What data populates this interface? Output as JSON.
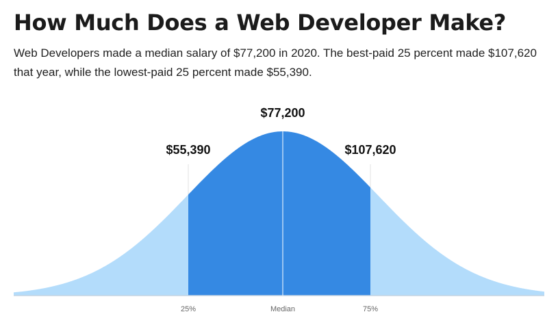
{
  "header": {
    "title": "How Much Does a Web Developer Make?",
    "subtitle": "Web Developers made a median salary of $77,200 in 2020. The best-paid 25 percent made $107,620 that year, while the lowest-paid 25 percent made $55,390."
  },
  "chart_data": {
    "type": "area",
    "shape": "bell-curve",
    "title": "",
    "xlabel": "",
    "ylabel": "",
    "grid": false,
    "markers": [
      {
        "tick_label": "25%",
        "value": 55390,
        "value_label": "$55,390"
      },
      {
        "tick_label": "Median",
        "value": 77200,
        "value_label": "$77,200"
      },
      {
        "tick_label": "75%",
        "value": 107620,
        "value_label": "$107,620"
      }
    ],
    "colors": {
      "middle_range": "#3589e3",
      "tails": "#b3dcfb",
      "marker_line": "#e0e0e0",
      "median_line": "#ffffff",
      "baseline": "#c5d3e2"
    }
  }
}
